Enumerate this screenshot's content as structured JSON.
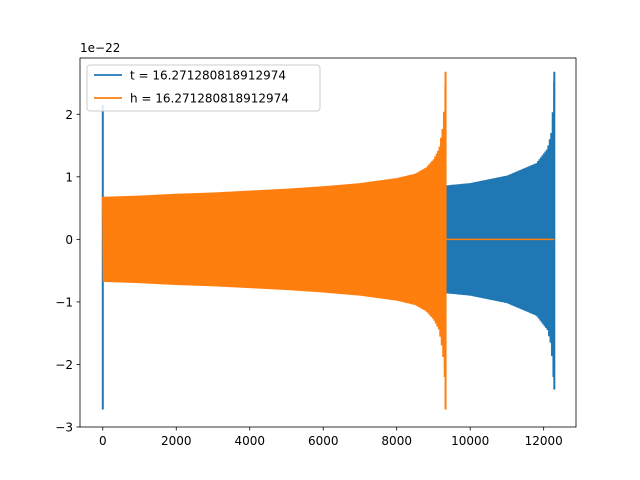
{
  "chart_data": {
    "type": "line",
    "title": "",
    "xlabel": "",
    "ylabel": "",
    "y_offset_text": "1e−22",
    "xlim": [
      -620,
      12880
    ],
    "ylim": [
      -3,
      2.9
    ],
    "xticks": [
      0,
      2000,
      4000,
      6000,
      8000,
      10000,
      12000
    ],
    "xtick_labels": [
      "0",
      "2000",
      "4000",
      "6000",
      "8000",
      "10000",
      "12000"
    ],
    "yticks": [
      -3,
      -2,
      -1,
      0,
      1,
      2
    ],
    "ytick_labels": [
      "−3",
      "−2",
      "−1",
      "0",
      "1",
      "2"
    ],
    "grid": false,
    "legend_position": "upper-left",
    "series": [
      {
        "name": "t = 16.271280818912974",
        "color": "#1f77b4",
        "samples": 12290,
        "envelope_x": [
          0,
          1000,
          2000,
          3000,
          4000,
          5000,
          6000,
          7000,
          8000,
          9000,
          9300,
          10000,
          11000,
          11800,
          12100,
          12200,
          12260,
          12290
        ],
        "envelope_y": [
          0.68,
          0.68,
          0.69,
          0.7,
          0.72,
          0.73,
          0.74,
          0.75,
          0.77,
          0.81,
          0.86,
          0.9,
          1.02,
          1.22,
          1.45,
          1.7,
          2.2,
          2.68
        ],
        "spikes": [
          {
            "x": 0,
            "max": 2.15,
            "min": -2.72
          },
          {
            "x": 12290,
            "max": 2.68,
            "min": -2.4
          }
        ]
      },
      {
        "name": "h = 16.271280818912974",
        "color": "#ff7f0e",
        "samples": 12290,
        "envelope_x": [
          0,
          1000,
          2000,
          3000,
          4000,
          5000,
          6000,
          7000,
          8000,
          8500,
          8800,
          9000,
          9150,
          9250,
          9300,
          9330
        ],
        "envelope_y": [
          0.68,
          0.7,
          0.73,
          0.75,
          0.78,
          0.81,
          0.85,
          0.9,
          0.98,
          1.05,
          1.15,
          1.28,
          1.45,
          1.8,
          2.2,
          2.68
        ],
        "zero_after_x": 9330
      }
    ]
  }
}
